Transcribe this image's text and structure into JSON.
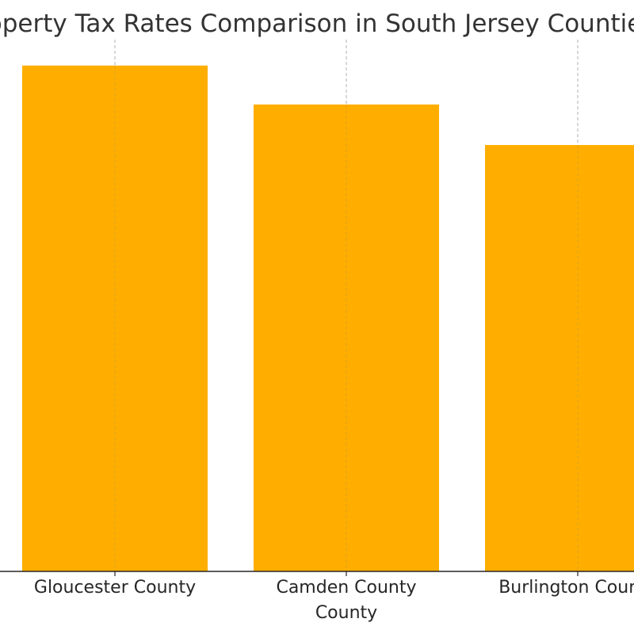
{
  "chart_data": {
    "type": "bar",
    "title": "Property Tax Rates Comparison in South Jersey Counties",
    "categories": [
      [
        "Gloucester County"
      ],
      [
        "Camden County",
        "County"
      ],
      [
        "Burlington County"
      ]
    ],
    "values": [
      3.12,
      2.88,
      2.63
    ],
    "xlabel": "",
    "ylabel": "",
    "ylim": [
      0,
      3.28
    ],
    "bar_color": "#FFAE00",
    "gridlines": "vertical-dashed",
    "legend": "none"
  }
}
